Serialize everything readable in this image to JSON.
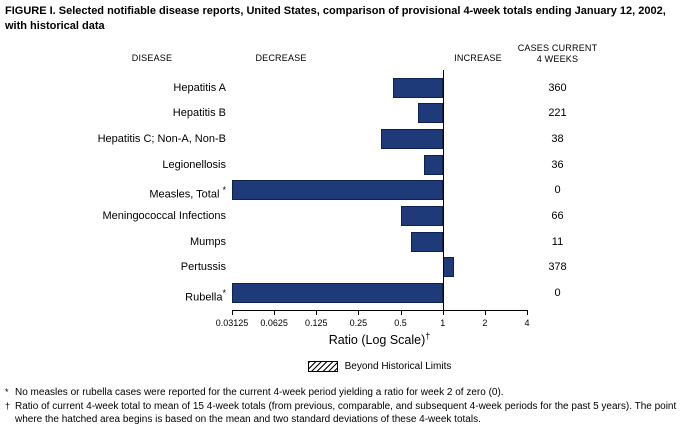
{
  "title": "FIGURE I. Selected notifiable disease reports, United States, comparison of provisional 4-week totals ending January 12, 2002, with historical data",
  "columns": {
    "disease": "DISEASE",
    "decrease": "DECREASE",
    "increase": "INCREASE",
    "cases_line1": "CASES CURRENT",
    "cases_line2": "4 WEEKS"
  },
  "chart_data": {
    "type": "bar",
    "orientation": "horizontal",
    "scale": "log2",
    "baseline": 1,
    "xlim": [
      0.03125,
      4
    ],
    "x_ticks": [
      "0.03125",
      "0.0625",
      "0.125",
      "0.25",
      "0.5",
      "1",
      "2",
      "4"
    ],
    "x_tick_values": [
      0.03125,
      0.0625,
      0.125,
      0.25,
      0.5,
      1,
      2,
      4
    ],
    "xlabel": "Ratio (Log Scale)",
    "xlabel_marker": "†",
    "rows": [
      {
        "disease": "Hepatitis A",
        "marker": "",
        "ratio": 0.44,
        "cases": "360"
      },
      {
        "disease": "Hepatitis B",
        "marker": "",
        "ratio": 0.67,
        "cases": "221"
      },
      {
        "disease": "Hepatitis C; Non-A, Non-B",
        "marker": "",
        "ratio": 0.36,
        "cases": "38"
      },
      {
        "disease": "Legionellosis",
        "marker": "",
        "ratio": 0.74,
        "cases": "36"
      },
      {
        "disease": "Measles, Total ",
        "marker": "*",
        "ratio": 0.03125,
        "cases": "0"
      },
      {
        "disease": "Meningococcal Infections",
        "marker": "",
        "ratio": 0.5,
        "cases": "66"
      },
      {
        "disease": "Mumps",
        "marker": "",
        "ratio": 0.59,
        "cases": "11"
      },
      {
        "disease": "Pertussis",
        "marker": "",
        "ratio": 1.2,
        "cases": "378"
      },
      {
        "disease": "Rubella",
        "marker": "*",
        "ratio": 0.03125,
        "cases": "0"
      }
    ],
    "legend": {
      "label": "Beyond Historical Limits",
      "pattern": "hatched"
    }
  },
  "footnotes": [
    {
      "marker": "*",
      "text": "No measles or rubella cases were reported for the current 4-week period yielding a ratio for week 2 of zero (0)."
    },
    {
      "marker": "†",
      "text": "Ratio of current 4-week total to mean of 15 4-week totals (from previous, comparable, and subsequent 4-week periods for the past 5 years). The point where the hatched area begins is based on the mean and two standard deviations of these 4-week totals."
    }
  ],
  "colors": {
    "bar": "#1e3a78",
    "bar_border": "#0d2152",
    "axis": "#000000"
  }
}
